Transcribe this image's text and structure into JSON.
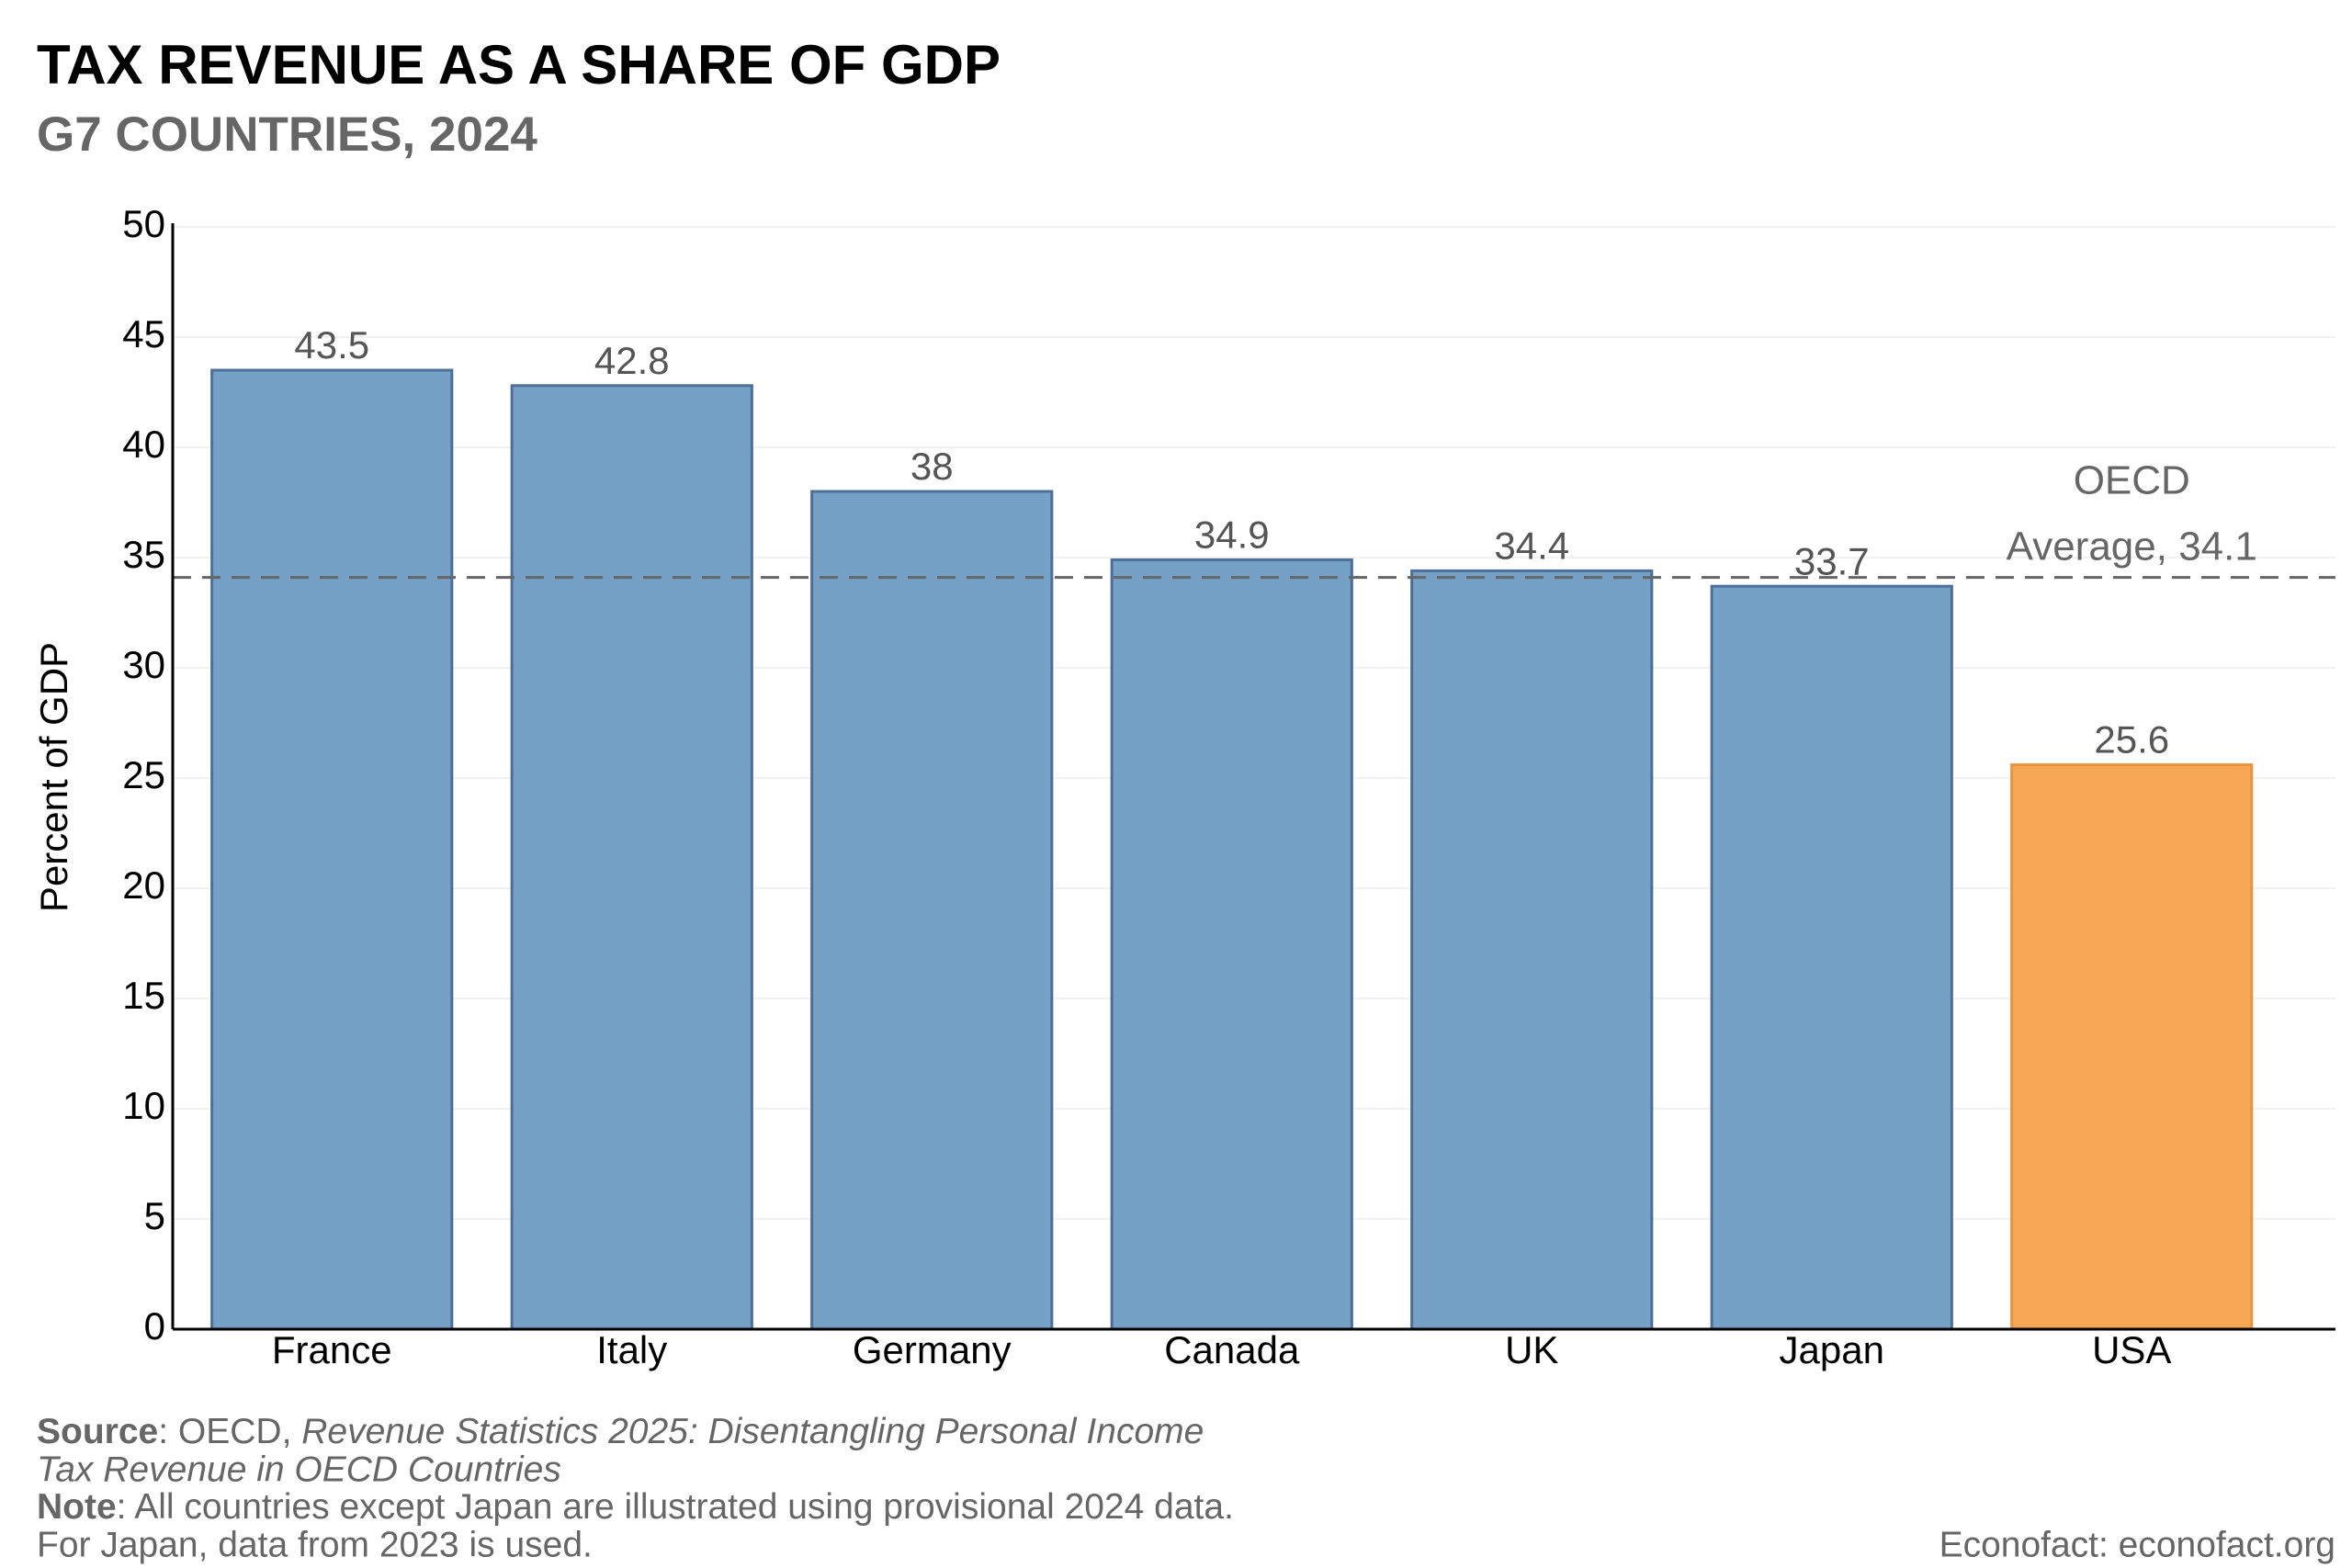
{
  "chart_data": {
    "type": "bar",
    "title": "TAX REVENUE AS A SHARE OF GDP",
    "subtitle": "G7 COUNTRIES, 2024",
    "y_label": "Percent of GDP",
    "categories": [
      "France",
      "Italy",
      "Germany",
      "Canada",
      "UK",
      "Japan",
      "USA"
    ],
    "values": [
      43.5,
      42.8,
      38,
      34.9,
      34.4,
      33.7,
      25.6
    ],
    "colors": [
      "#75a1c7",
      "#75a1c7",
      "#75a1c7",
      "#75a1c7",
      "#75a1c7",
      "#75a1c7",
      "#f7a656"
    ],
    "edge_colors": [
      "#4b6f98",
      "#4b6f98",
      "#4b6f98",
      "#4b6f98",
      "#4b6f98",
      "#4b6f98",
      "#e89440"
    ],
    "ylim": [
      0,
      50
    ],
    "yticks": [
      0,
      5,
      10,
      15,
      20,
      25,
      30,
      35,
      40,
      45,
      50
    ],
    "grid": true,
    "reference_line": {
      "value": 34.1,
      "label_lines": [
        "OECD",
        "Average, 34.1"
      ],
      "color": "#666666"
    },
    "footer": {
      "source_label": "Source",
      "source_text": ": OECD, ",
      "source_title_line1": "Revenue Statistics 2025: Disentangling Personal Income",
      "source_title_line2": "Tax Revenue in OECD Countries",
      "note_label": "Note",
      "note_line1": ": All countries except Japan are illustrated using provisional 2024 data.",
      "note_line2": "For Japan, data from 2023 is used.",
      "credit": "Econofact: econofact.org"
    }
  }
}
